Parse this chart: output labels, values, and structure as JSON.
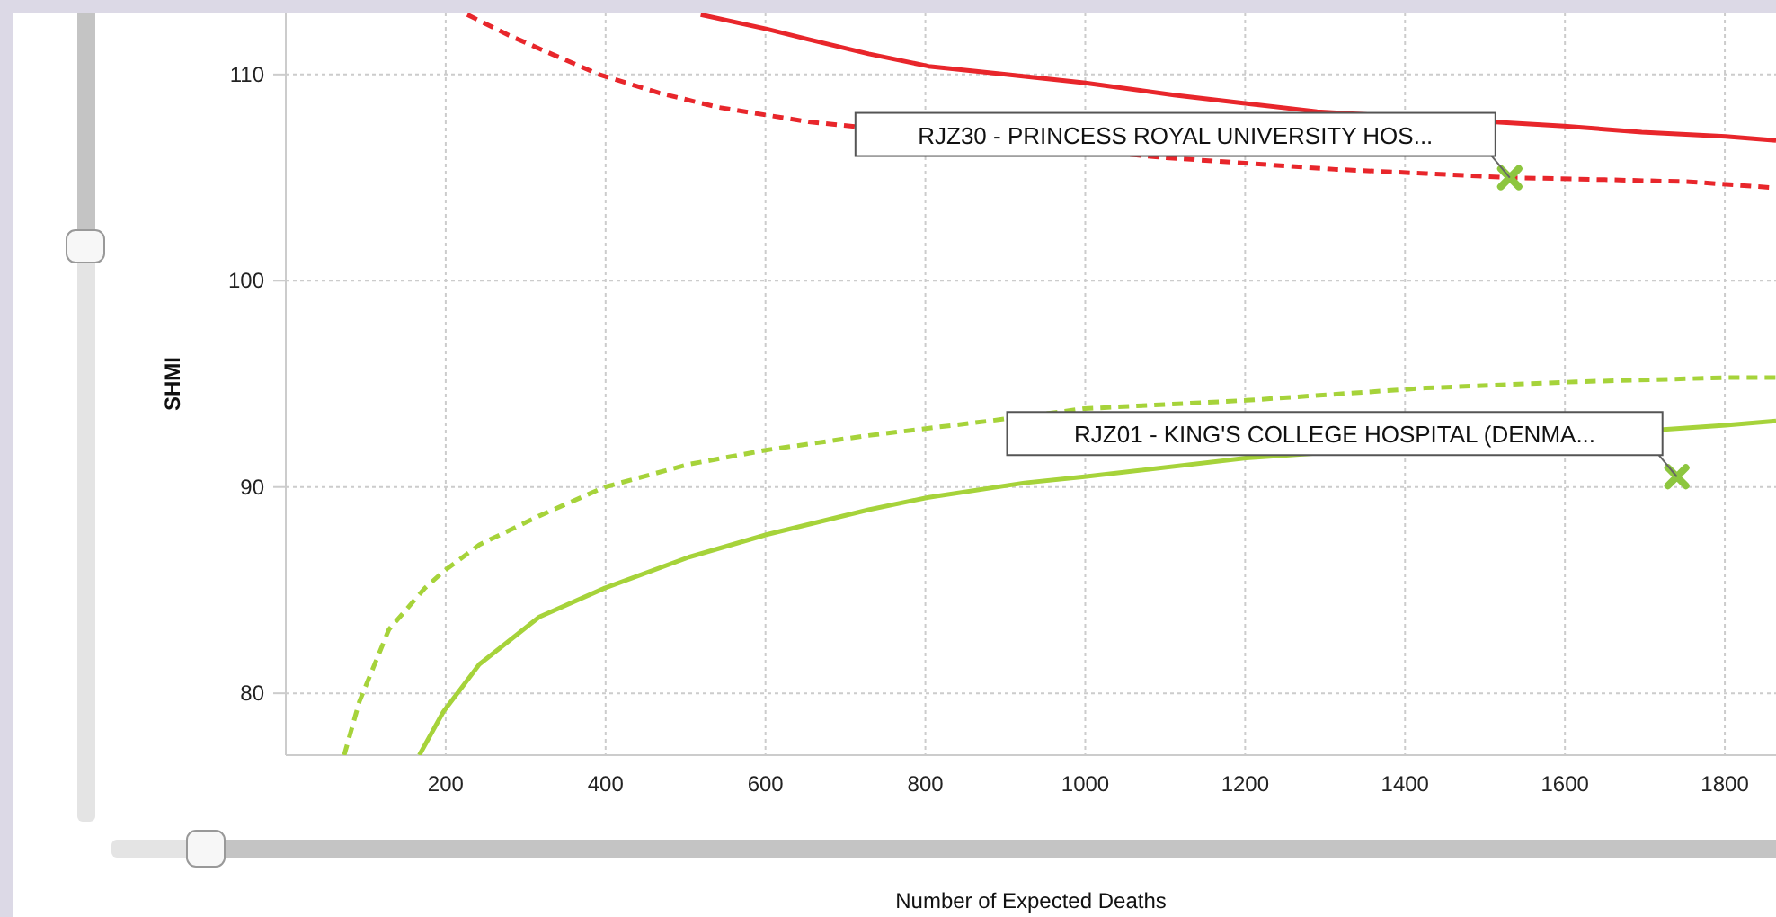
{
  "chart_data": {
    "type": "line",
    "xlabel": "Number of Expected Deaths",
    "ylabel": "SHMI",
    "xlim": [
      0,
      1864
    ],
    "ylim": [
      77,
      113
    ],
    "xticks": [
      200,
      400,
      600,
      800,
      1000,
      1200,
      1400,
      1600,
      1800
    ],
    "yticks": [
      80,
      90,
      100,
      110
    ],
    "grid": true,
    "series": [
      {
        "color": "#e8262b",
        "line_style": "solid",
        "x": [
          519,
          602,
          654,
          729,
          804,
          901,
          998,
          1111,
          1200,
          1290,
          1599,
          1696,
          1801,
          1864
        ],
        "values": [
          112.9,
          112.2,
          111.7,
          111.0,
          110.4,
          110.0,
          109.6,
          109.0,
          108.6,
          108.2,
          107.5,
          107.2,
          107.0,
          106.8
        ]
      },
      {
        "color": "#e8262b",
        "line_style": "dashed",
        "x": [
          227,
          279,
          332,
          392,
          467,
          542,
          654,
          1088,
          1200,
          1313,
          1426,
          1531,
          1650,
          1756,
          1864
        ],
        "values": [
          112.9,
          111.9,
          111.0,
          110.0,
          109.1,
          108.4,
          107.7,
          106.0,
          105.7,
          105.4,
          105.2,
          105.0,
          104.9,
          104.8,
          104.5
        ]
      },
      {
        "color": "#a6d33a",
        "line_style": "dashed",
        "x": [
          73,
          92,
          129,
          174,
          197,
          242,
          317,
          399,
          504,
          602,
          729,
          879,
          999,
          1201,
          1426,
          1614,
          1801,
          1864
        ],
        "values": [
          77.0,
          79.6,
          83.1,
          85.1,
          85.9,
          87.2,
          88.6,
          90.0,
          91.1,
          91.8,
          92.5,
          93.2,
          93.8,
          94.2,
          94.8,
          95.1,
          95.3,
          95.3
        ]
      },
      {
        "color": "#a6d33a",
        "line_style": "solid",
        "x": [
          167,
          197,
          242,
          317,
          399,
          504,
          602,
          729,
          804,
          924,
          999,
          1201,
          1801,
          1864
        ],
        "values": [
          77.0,
          79.1,
          81.4,
          83.7,
          85.1,
          86.6,
          87.7,
          88.9,
          89.5,
          90.2,
          90.5,
          91.4,
          93.0,
          93.2
        ]
      },
      {
        "type": "scatter",
        "color": "#8dc63f",
        "marker": "cross",
        "x": [
          1531,
          1740
        ],
        "values": [
          105.0,
          90.5
        ]
      }
    ],
    "annotations": [
      "RJZ30 - PRINCESS ROYAL UNIVERSITY HOS...",
      "RJZ01 - KING'S COLLEGE HOSPITAL (DENMA..."
    ]
  }
}
